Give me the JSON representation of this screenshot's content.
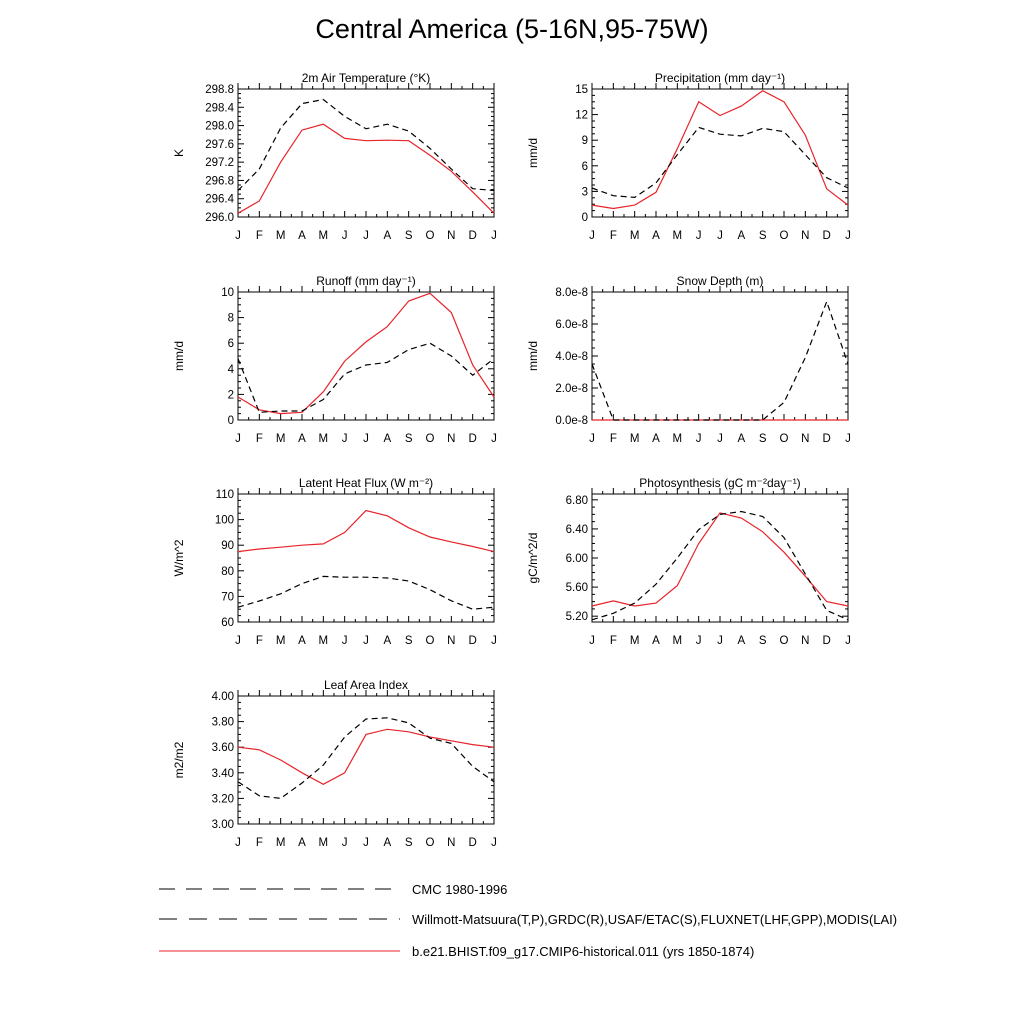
{
  "title": "Central America (5-16N,95-75W)",
  "months": [
    "J",
    "F",
    "M",
    "A",
    "M",
    "J",
    "J",
    "A",
    "S",
    "O",
    "N",
    "D",
    "J"
  ],
  "colors": {
    "model": "#e8232a",
    "cmc": "#000000",
    "obs": "#000000",
    "axis": "#000000"
  },
  "legend": [
    {
      "label": "CMC 1980-1996",
      "style": "dash-long",
      "color": "#000000"
    },
    {
      "label": "Willmott-Matsuura(T,P),GRDC(R),USAF/ETAC(S),FLUXNET(LHF,GPP),MODIS(LAI)",
      "style": "dash-mixed",
      "color": "#000000"
    },
    {
      "label": "b.e21.BHIST.f09_g17.CMIP6-historical.011 (yrs 1850-1874)",
      "style": "solid",
      "color": "#e8232a"
    }
  ],
  "chart_data": [
    {
      "type": "line",
      "title": "2m Air Temperature (°K)",
      "ylabel": "K",
      "ylim": [
        296.0,
        298.8
      ],
      "yticks": [
        "296.0",
        "296.4",
        "296.8",
        "297.2",
        "297.6",
        "298.0",
        "298.4",
        "298.8"
      ],
      "x": [
        "J",
        "F",
        "M",
        "A",
        "M",
        "J",
        "J",
        "A",
        "S",
        "O",
        "N",
        "D",
        "J"
      ],
      "series": [
        {
          "style": "solid",
          "values": [
            296.08,
            296.35,
            297.2,
            297.9,
            298.03,
            297.72,
            297.67,
            297.68,
            297.67,
            297.35,
            297.0,
            296.55,
            296.08
          ]
        },
        {
          "style": "dashed",
          "values": [
            296.58,
            297.05,
            297.95,
            298.48,
            298.57,
            298.2,
            297.93,
            298.03,
            297.88,
            297.5,
            297.05,
            296.62,
            296.58
          ]
        }
      ]
    },
    {
      "type": "line",
      "title": "Precipitation (mm day⁻¹)",
      "ylabel": "mm/d",
      "ylim": [
        0,
        15
      ],
      "yticks": [
        "0",
        "3",
        "6",
        "9",
        "12",
        "15"
      ],
      "x": [
        "J",
        "F",
        "M",
        "A",
        "M",
        "J",
        "J",
        "A",
        "S",
        "O",
        "N",
        "D",
        "J"
      ],
      "series": [
        {
          "style": "solid",
          "values": [
            1.4,
            1.0,
            1.4,
            2.9,
            8.0,
            13.5,
            11.9,
            13.0,
            14.8,
            13.5,
            9.6,
            3.3,
            1.4
          ]
        },
        {
          "style": "dashed",
          "values": [
            3.4,
            2.5,
            2.3,
            4.0,
            7.3,
            10.5,
            9.7,
            9.5,
            10.4,
            10.0,
            7.3,
            4.6,
            3.4
          ]
        }
      ]
    },
    {
      "type": "line",
      "title": "Runoff (mm day⁻¹)",
      "ylabel": "mm/d",
      "ylim": [
        0,
        10
      ],
      "yticks": [
        "0",
        "2",
        "4",
        "6",
        "8",
        "10"
      ],
      "x": [
        "J",
        "F",
        "M",
        "A",
        "M",
        "J",
        "J",
        "A",
        "S",
        "O",
        "N",
        "D",
        "J"
      ],
      "series": [
        {
          "style": "solid",
          "values": [
            1.8,
            0.8,
            0.5,
            0.6,
            2.2,
            4.6,
            6.1,
            7.3,
            9.3,
            9.9,
            8.4,
            4.3,
            1.8
          ]
        },
        {
          "style": "dashed",
          "values": [
            4.8,
            0.6,
            0.7,
            0.7,
            1.6,
            3.6,
            4.3,
            4.5,
            5.5,
            6.0,
            5.0,
            3.5,
            4.8
          ]
        }
      ]
    },
    {
      "type": "line",
      "title": "Snow Depth (m)",
      "ylabel": "mm/d",
      "ylim": [
        0,
        8e-08
      ],
      "yticks": [
        "0.0e-8",
        "2.0e-8",
        "4.0e-8",
        "6.0e-8",
        "8.0e-8"
      ],
      "x": [
        "J",
        "F",
        "M",
        "A",
        "M",
        "J",
        "J",
        "A",
        "S",
        "O",
        "N",
        "D",
        "J"
      ],
      "series": [
        {
          "style": "solid",
          "values": [
            0,
            0,
            0,
            0,
            0,
            0,
            0,
            0,
            0,
            0,
            0,
            0,
            0
          ]
        },
        {
          "style": "dashed",
          "values": [
            3.5e-08,
            0,
            0,
            0,
            0,
            0,
            0,
            0,
            0,
            1.1e-08,
            3.9e-08,
            7.4e-08,
            3.5e-08
          ]
        }
      ]
    },
    {
      "type": "line",
      "title": "Latent Heat Flux (W m⁻²)",
      "ylabel": "W/m^2",
      "ylim": [
        60,
        110
      ],
      "yticks": [
        "60",
        "70",
        "80",
        "90",
        "100",
        "110"
      ],
      "x": [
        "J",
        "F",
        "M",
        "A",
        "M",
        "J",
        "J",
        "A",
        "S",
        "O",
        "N",
        "D",
        "J"
      ],
      "series": [
        {
          "style": "solid",
          "values": [
            87.5,
            88.5,
            89.2,
            90.0,
            90.5,
            95.0,
            103.5,
            101.5,
            96.8,
            93.2,
            91.3,
            89.5,
            87.5
          ]
        },
        {
          "style": "dashed",
          "values": [
            65.8,
            68.2,
            71.0,
            75.0,
            77.8,
            77.5,
            77.5,
            77.2,
            76.0,
            72.6,
            68.3,
            65.0,
            65.8
          ]
        }
      ]
    },
    {
      "type": "line",
      "title": "Photosynthesis (gC m⁻²day⁻¹)",
      "ylabel": "gC/m^2/d",
      "ylim": [
        5.12,
        6.88
      ],
      "yticks": [
        "5.20",
        "5.60",
        "6.00",
        "6.40",
        "6.80"
      ],
      "x": [
        "J",
        "F",
        "M",
        "A",
        "M",
        "J",
        "J",
        "A",
        "S",
        "O",
        "N",
        "D",
        "J"
      ],
      "series": [
        {
          "style": "solid",
          "values": [
            5.34,
            5.41,
            5.34,
            5.38,
            5.62,
            6.2,
            6.62,
            6.55,
            6.36,
            6.08,
            5.75,
            5.4,
            5.34
          ]
        },
        {
          "style": "dashed",
          "values": [
            5.15,
            5.24,
            5.38,
            5.64,
            6.0,
            6.39,
            6.6,
            6.64,
            6.57,
            6.28,
            5.78,
            5.28,
            5.15
          ]
        }
      ]
    },
    {
      "type": "line",
      "title": "Leaf Area Index",
      "ylabel": "m2/m2",
      "ylim": [
        3.0,
        4.0
      ],
      "yticks": [
        "3.00",
        "3.20",
        "3.40",
        "3.60",
        "3.80",
        "4.00"
      ],
      "x": [
        "J",
        "F",
        "M",
        "A",
        "M",
        "J",
        "J",
        "A",
        "S",
        "O",
        "N",
        "D",
        "J"
      ],
      "series": [
        {
          "style": "solid",
          "values": [
            3.6,
            3.58,
            3.5,
            3.4,
            3.31,
            3.4,
            3.7,
            3.74,
            3.72,
            3.68,
            3.65,
            3.62,
            3.6
          ]
        },
        {
          "style": "dashed",
          "values": [
            3.33,
            3.22,
            3.2,
            3.32,
            3.46,
            3.68,
            3.82,
            3.83,
            3.79,
            3.67,
            3.63,
            3.45,
            3.33
          ]
        }
      ]
    }
  ]
}
